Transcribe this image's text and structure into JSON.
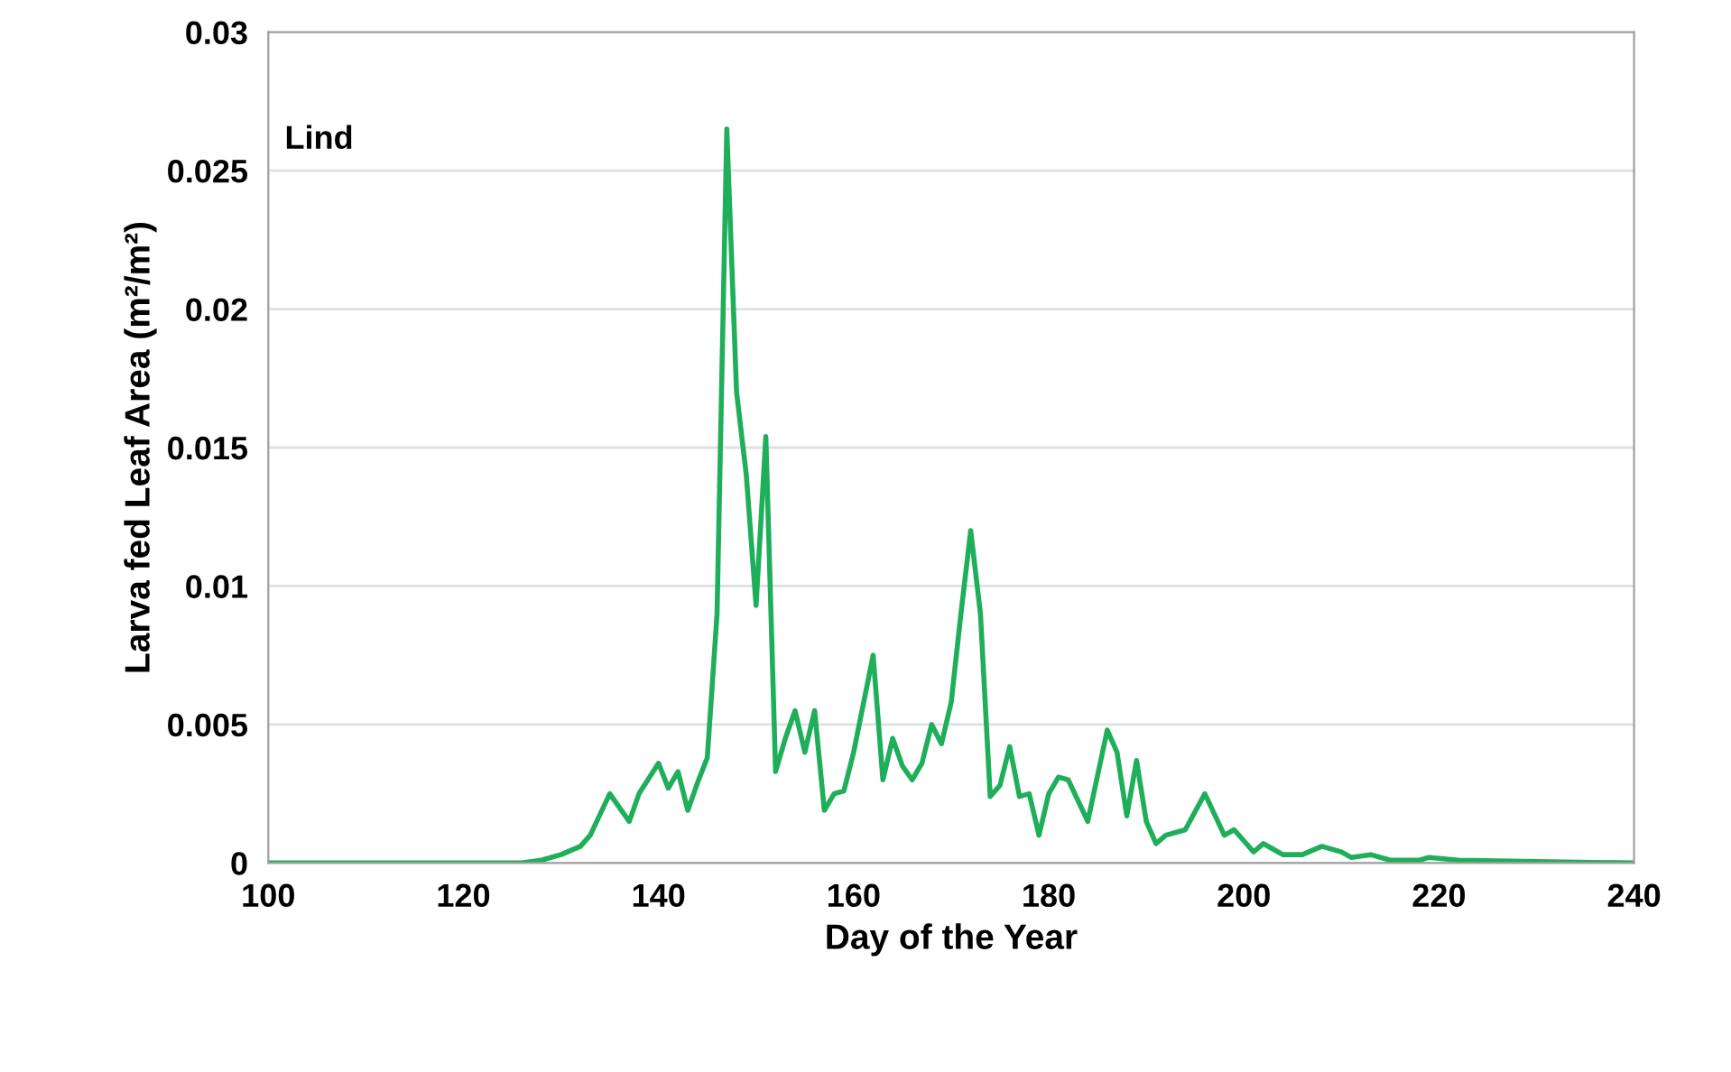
{
  "chart_data": {
    "type": "line",
    "xlabel": "Day of the Year",
    "ylabel": "Larva fed Leaf Area (m²/m²)",
    "annotations": [
      "Lind"
    ],
    "xlim": [
      100,
      240
    ],
    "xticks": [
      100,
      120,
      140,
      160,
      180,
      200,
      220,
      240
    ],
    "ylim": [
      0,
      0.03
    ],
    "yticks": [
      0,
      0.005,
      0.01,
      0.015,
      0.02,
      0.025,
      0.03
    ],
    "grid": "y",
    "legend": false,
    "series": [
      {
        "color": "#1fae5a",
        "x": [
          100,
          126,
          128,
          130,
          132,
          133,
          135,
          137,
          138,
          140,
          141,
          142,
          143,
          144,
          145,
          146,
          147,
          148,
          149,
          150,
          151,
          152,
          153,
          154,
          155,
          156,
          157,
          158,
          159,
          160,
          162,
          163,
          164,
          165,
          166,
          167,
          168,
          169,
          170,
          171,
          172,
          173,
          174,
          175,
          176,
          177,
          178,
          179,
          180,
          181,
          182,
          184,
          186,
          187,
          188,
          189,
          190,
          191,
          192,
          194,
          196,
          198,
          199,
          200,
          201,
          202,
          203,
          204,
          206,
          208,
          210,
          211,
          213,
          215,
          218,
          219,
          222,
          230,
          240
        ],
        "values": [
          0,
          0,
          0.0001,
          0.0003,
          0.0006,
          0.001,
          0.0025,
          0.0015,
          0.0025,
          0.0036,
          0.0027,
          0.0033,
          0.0019,
          0.0029,
          0.0038,
          0.009,
          0.0265,
          0.017,
          0.014,
          0.0093,
          0.0154,
          0.0033,
          0.0045,
          0.0055,
          0.004,
          0.0055,
          0.0019,
          0.0025,
          0.0026,
          0.004,
          0.0075,
          0.003,
          0.0045,
          0.0035,
          0.003,
          0.0036,
          0.005,
          0.0043,
          0.0058,
          0.009,
          0.012,
          0.009,
          0.0024,
          0.0028,
          0.0042,
          0.0024,
          0.0025,
          0.001,
          0.0025,
          0.0031,
          0.003,
          0.0015,
          0.0048,
          0.004,
          0.0017,
          0.0037,
          0.0015,
          0.0007,
          0.001,
          0.0012,
          0.0025,
          0.001,
          0.0012,
          0.0008,
          0.0004,
          0.0007,
          0.0005,
          0.0003,
          0.0003,
          0.0006,
          0.0004,
          0.0002,
          0.0003,
          0.0001,
          0.0001,
          0.0002,
          0.0001,
          5e-05,
          0
        ]
      }
    ]
  }
}
